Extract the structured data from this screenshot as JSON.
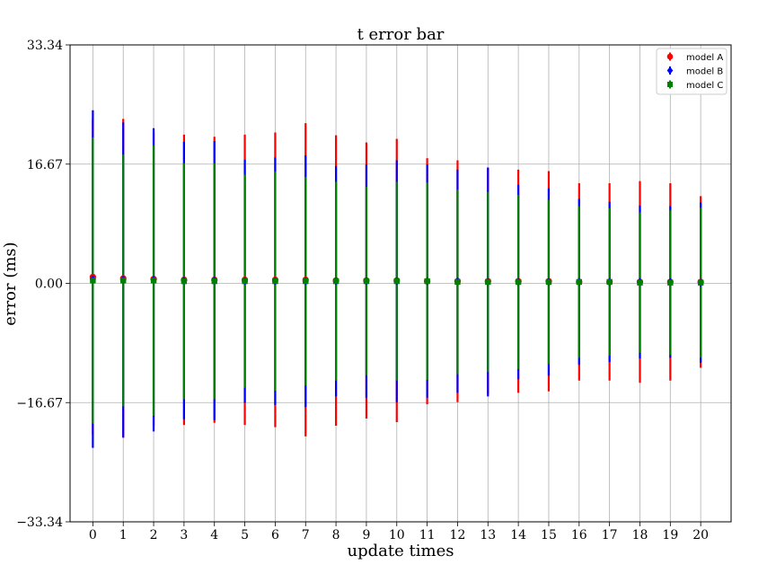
{
  "chart_data": {
    "type": "errorbar",
    "title": "t error bar",
    "xlabel": "update times",
    "ylabel": "error (ms)",
    "x": [
      0,
      1,
      2,
      3,
      4,
      5,
      6,
      7,
      8,
      9,
      10,
      11,
      12,
      13,
      14,
      15,
      16,
      17,
      18,
      19,
      20
    ],
    "xlim": [
      -0.75,
      21
    ],
    "ylim": [
      -33.34,
      33.34
    ],
    "yticks": [
      -33.34,
      -16.67,
      0.0,
      16.67,
      33.34
    ],
    "ytick_labels": [
      "−33.34",
      "−16.67",
      "0.00",
      "16.67",
      "33.34"
    ],
    "grid": true,
    "legend_position": "top-right",
    "series": [
      {
        "name": "model A",
        "color": "#ff0000",
        "marker": "circle",
        "values": [
          0.9,
          0.7,
          0.6,
          0.5,
          0.5,
          0.5,
          0.5,
          0.5,
          0.4,
          0.4,
          0.4,
          0.3,
          0.3,
          0.3,
          0.3,
          0.3,
          0.2,
          0.2,
          0.2,
          0.2,
          0.2
        ],
        "errors": [
          22.0,
          22.3,
          20.5,
          20.3,
          20.0,
          20.3,
          20.6,
          21.9,
          20.3,
          19.3,
          19.8,
          17.2,
          16.9,
          15.8,
          15.6,
          15.4,
          13.8,
          13.8,
          14.1,
          13.8,
          12.0
        ]
      },
      {
        "name": "model B",
        "color": "#0000ff",
        "marker": "diamond",
        "values": [
          0.6,
          0.5,
          0.5,
          0.4,
          0.4,
          0.3,
          0.3,
          0.3,
          0.3,
          0.3,
          0.3,
          0.3,
          0.3,
          0.2,
          0.2,
          0.2,
          0.2,
          0.2,
          0.2,
          0.2,
          0.1
        ],
        "errors": [
          23.6,
          22.0,
          21.2,
          19.4,
          19.5,
          17.0,
          17.3,
          17.6,
          16.1,
          16.3,
          16.9,
          16.3,
          15.6,
          16.0,
          13.6,
          13.1,
          11.6,
          11.2,
          10.7,
          10.6,
          11.2
        ]
      },
      {
        "name": "model C",
        "color": "#008000",
        "marker": "square",
        "values": [
          0.4,
          0.4,
          0.4,
          0.3,
          0.3,
          0.3,
          0.3,
          0.3,
          0.3,
          0.3,
          0.3,
          0.3,
          0.2,
          0.2,
          0.2,
          0.2,
          0.2,
          0.2,
          0.1,
          0.1,
          0.1
        ],
        "errors": [
          20.0,
          17.6,
          18.9,
          16.5,
          16.5,
          14.9,
          15.3,
          14.6,
          13.9,
          13.2,
          13.9,
          13.8,
          12.9,
          12.6,
          12.2,
          11.5,
          10.6,
          10.3,
          9.8,
          10.1,
          10.5
        ]
      }
    ]
  }
}
